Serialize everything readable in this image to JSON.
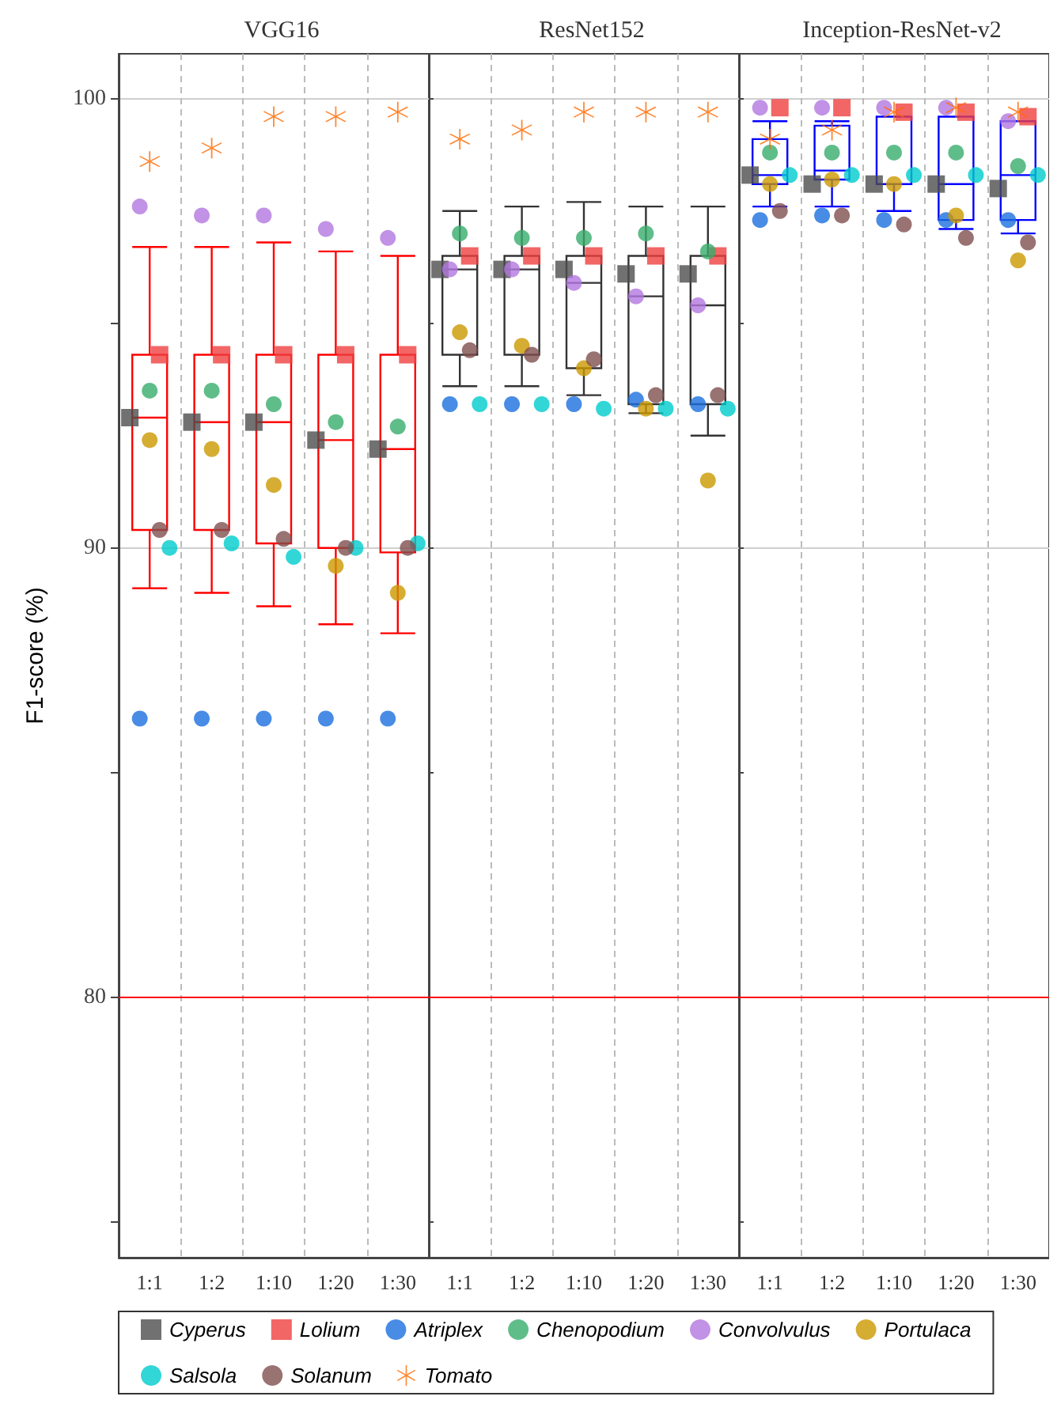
{
  "chart_data": [
    {
      "type": "box",
      "title": "VGG16",
      "ylabel": "F1-score (%)",
      "categories": [
        "1:1",
        "1:2",
        "1:10",
        "1:20",
        "1:30"
      ],
      "ylim": [
        74.2,
        101
      ],
      "yticks": [
        {
          "value": 75,
          "label": null
        },
        80,
        {
          "value": 85,
          "label": null
        },
        90,
        {
          "value": 95,
          "label": null
        },
        100
      ],
      "grid": true,
      "legend": "bottom",
      "ref_lines": [
        {
          "axis": "y",
          "value": 80,
          "color": "#ff0000"
        }
      ],
      "series": [
        {
          "type": "box",
          "color": "#ff0000",
          "boxes": [
            {
              "low": 89.1,
              "q1": 90.4,
              "median": 92.9,
              "q3": 94.3,
              "high": 96.7
            },
            {
              "low": 89.0,
              "q1": 90.4,
              "median": 92.8,
              "q3": 94.3,
              "high": 96.7
            },
            {
              "low": 88.7,
              "q1": 90.1,
              "median": 92.8,
              "q3": 94.3,
              "high": 96.8
            },
            {
              "low": 88.3,
              "q1": 90.0,
              "median": 92.4,
              "q3": 94.3,
              "high": 96.6
            },
            {
              "low": 88.1,
              "q1": 89.9,
              "median": 92.2,
              "q3": 94.3,
              "high": 96.5
            }
          ]
        },
        {
          "type": "scatter",
          "name": "Cyperus",
          "marker": "square",
          "color": "#4d4d4d",
          "x": [
            "1:1",
            "1:2",
            "1:10",
            "1:20",
            "1:30"
          ],
          "values": [
            92.9,
            92.8,
            92.8,
            92.4,
            92.2
          ]
        },
        {
          "type": "scatter",
          "name": "Lolium",
          "marker": "square",
          "color": "#ef4040",
          "x": [
            "1:1",
            "1:2",
            "1:10",
            "1:20",
            "1:30"
          ],
          "values": [
            94.3,
            94.3,
            94.3,
            94.3,
            94.3
          ]
        },
        {
          "type": "scatter",
          "name": "Atriplex",
          "marker": "circle",
          "color": "#1a6fdf",
          "x": [
            "1:1",
            "1:2",
            "1:10",
            "1:20",
            "1:30"
          ],
          "values": [
            86.2,
            86.2,
            86.2,
            86.2,
            86.2
          ]
        },
        {
          "type": "scatter",
          "name": "Chenopodium",
          "marker": "circle",
          "color": "#37ad6b",
          "x": [
            "1:1",
            "1:2",
            "1:10",
            "1:20",
            "1:30"
          ],
          "values": [
            93.5,
            93.5,
            93.2,
            92.8,
            92.7
          ]
        },
        {
          "type": "scatter",
          "name": "Convolvulus",
          "marker": "circle",
          "color": "#b177de",
          "x": [
            "1:1",
            "1:2",
            "1:10",
            "1:20",
            "1:30"
          ],
          "values": [
            97.6,
            97.4,
            97.4,
            97.1,
            96.9
          ]
        },
        {
          "type": "scatter",
          "name": "Portulaca",
          "marker": "circle",
          "color": "#cc9900",
          "x": [
            "1:1",
            "1:2",
            "1:10",
            "1:20",
            "1:30"
          ],
          "values": [
            92.4,
            92.2,
            91.4,
            89.6,
            89.0
          ]
        },
        {
          "type": "scatter",
          "name": "Salsola",
          "marker": "circle",
          "color": "#00cccc",
          "x": [
            "1:1",
            "1:2",
            "1:10",
            "1:20",
            "1:30"
          ],
          "values": [
            90.0,
            90.1,
            89.8,
            90.0,
            90.1
          ]
        },
        {
          "type": "scatter",
          "name": "Solanum",
          "marker": "circle",
          "color": "#7f4f4f",
          "x": [
            "1:1",
            "1:2",
            "1:10",
            "1:20",
            "1:30"
          ],
          "values": [
            90.4,
            90.4,
            90.2,
            90.0,
            90.0
          ]
        },
        {
          "type": "scatter",
          "name": "Tomato",
          "marker": "star",
          "color": "#ff6a00",
          "x": [
            "1:1",
            "1:2",
            "1:10",
            "1:20",
            "1:30"
          ],
          "values": [
            98.6,
            98.9,
            99.6,
            99.6,
            99.7
          ]
        }
      ]
    },
    {
      "type": "box",
      "title": "ResNet152",
      "categories": [
        "1:1",
        "1:2",
        "1:10",
        "1:20",
        "1:30"
      ],
      "ylim": [
        74.2,
        101
      ],
      "yticks": [
        {
          "value": 75,
          "label": null
        },
        80,
        {
          "value": 85,
          "label": null
        },
        90,
        {
          "value": 95,
          "label": null
        },
        100
      ],
      "grid": true,
      "tick_labels": "x",
      "ref_lines": [
        {
          "axis": "y",
          "value": 80,
          "color": "#ff0000"
        }
      ],
      "series": [
        {
          "type": "box",
          "color": "#333333",
          "boxes": [
            {
              "low": 93.6,
              "q1": 94.3,
              "median": 96.2,
              "q3": 96.5,
              "high": 97.5
            },
            {
              "low": 93.6,
              "q1": 94.3,
              "median": 96.2,
              "q3": 96.5,
              "high": 97.6
            },
            {
              "low": 93.4,
              "q1": 94.0,
              "median": 95.9,
              "q3": 96.5,
              "high": 97.7
            },
            {
              "low": 93.0,
              "q1": 93.2,
              "median": 95.6,
              "q3": 96.5,
              "high": 97.6
            },
            {
              "low": 92.5,
              "q1": 93.2,
              "median": 95.4,
              "q3": 96.5,
              "high": 97.6
            }
          ]
        },
        {
          "type": "scatter",
          "marker": "square",
          "color": "#4d4d4d",
          "x": [
            "1:1",
            "1:2",
            "1:10",
            "1:20",
            "1:30"
          ],
          "values": [
            96.2,
            96.2,
            96.2,
            96.1,
            96.1
          ]
        },
        {
          "type": "scatter",
          "marker": "square",
          "color": "#ef4040",
          "x": [
            "1:1",
            "1:2",
            "1:10",
            "1:20",
            "1:30"
          ],
          "values": [
            96.5,
            96.5,
            96.5,
            96.5,
            96.5
          ]
        },
        {
          "type": "scatter",
          "marker": "circle",
          "color": "#1a6fdf",
          "x": [
            "1:1",
            "1:2",
            "1:10",
            "1:20",
            "1:30"
          ],
          "values": [
            93.2,
            93.2,
            93.2,
            93.3,
            93.2
          ]
        },
        {
          "type": "scatter",
          "marker": "circle",
          "color": "#37ad6b",
          "x": [
            "1:1",
            "1:2",
            "1:10",
            "1:20",
            "1:30"
          ],
          "values": [
            97.0,
            96.9,
            96.9,
            97.0,
            96.6
          ]
        },
        {
          "type": "scatter",
          "marker": "circle",
          "color": "#b177de",
          "x": [
            "1:1",
            "1:2",
            "1:10",
            "1:20",
            "1:30"
          ],
          "values": [
            96.2,
            96.2,
            95.9,
            95.6,
            95.4
          ]
        },
        {
          "type": "scatter",
          "marker": "circle",
          "color": "#cc9900",
          "x": [
            "1:1",
            "1:2",
            "1:10",
            "1:20",
            "1:30"
          ],
          "values": [
            94.8,
            94.5,
            94.0,
            93.1,
            91.5
          ]
        },
        {
          "type": "scatter",
          "marker": "circle",
          "color": "#00cccc",
          "x": [
            "1:1",
            "1:2",
            "1:10",
            "1:20",
            "1:30"
          ],
          "values": [
            93.2,
            93.2,
            93.1,
            93.1,
            93.1
          ]
        },
        {
          "type": "scatter",
          "marker": "circle",
          "color": "#7f4f4f",
          "x": [
            "1:1",
            "1:2",
            "1:10",
            "1:20",
            "1:30"
          ],
          "values": [
            94.4,
            94.3,
            94.2,
            93.4,
            93.4
          ]
        },
        {
          "type": "scatter",
          "marker": "star",
          "color": "#ff6a00",
          "x": [
            "1:1",
            "1:2",
            "1:10",
            "1:20",
            "1:30"
          ],
          "values": [
            99.1,
            99.3,
            99.7,
            99.7,
            99.7
          ]
        }
      ]
    },
    {
      "type": "box",
      "title": "Inception-ResNet-v2",
      "categories": [
        "1:1",
        "1:2",
        "1:10",
        "1:20",
        "1:30"
      ],
      "ylim": [
        74.2,
        101
      ],
      "yticks": [
        {
          "value": 75,
          "label": null
        },
        80,
        {
          "value": 85,
          "label": null
        },
        90,
        {
          "value": 95,
          "label": null
        },
        100
      ],
      "grid": true,
      "tick_labels": "x",
      "ref_lines": [
        {
          "axis": "y",
          "value": 80,
          "color": "#ff0000"
        }
      ],
      "series": [
        {
          "type": "box",
          "color": "#0000ff",
          "boxes": [
            {
              "low": 97.6,
              "q1": 98.1,
              "median": 98.3,
              "q3": 99.1,
              "high": 99.5
            },
            {
              "low": 97.6,
              "q1": 98.2,
              "median": 98.4,
              "q3": 99.4,
              "high": 99.5
            },
            {
              "low": 97.5,
              "q1": 98.1,
              "median": 98.1,
              "q3": 99.6,
              "high": 99.6
            },
            {
              "low": 97.1,
              "q1": 97.3,
              "median": 98.1,
              "q3": 99.6,
              "high": 99.6
            },
            {
              "low": 97.0,
              "q1": 97.3,
              "median": 98.3,
              "q3": 99.5,
              "high": 99.5
            }
          ]
        },
        {
          "type": "scatter",
          "marker": "square",
          "color": "#4d4d4d",
          "x": [
            "1:1",
            "1:2",
            "1:10",
            "1:20",
            "1:30"
          ],
          "values": [
            98.3,
            98.1,
            98.1,
            98.1,
            98.0
          ]
        },
        {
          "type": "scatter",
          "marker": "square",
          "color": "#ef4040",
          "x": [
            "1:1",
            "1:2",
            "1:10",
            "1:20",
            "1:30"
          ],
          "values": [
            99.8,
            99.8,
            99.7,
            99.7,
            99.6
          ]
        },
        {
          "type": "scatter",
          "marker": "circle",
          "color": "#1a6fdf",
          "x": [
            "1:1",
            "1:2",
            "1:10",
            "1:20",
            "1:30"
          ],
          "values": [
            97.3,
            97.4,
            97.3,
            97.3,
            97.3
          ]
        },
        {
          "type": "scatter",
          "marker": "circle",
          "color": "#37ad6b",
          "x": [
            "1:1",
            "1:2",
            "1:10",
            "1:20",
            "1:30"
          ],
          "values": [
            98.8,
            98.8,
            98.8,
            98.8,
            98.5
          ]
        },
        {
          "type": "scatter",
          "marker": "circle",
          "color": "#b177de",
          "x": [
            "1:1",
            "1:2",
            "1:10",
            "1:20",
            "1:30"
          ],
          "values": [
            99.8,
            99.8,
            99.8,
            99.8,
            99.5
          ]
        },
        {
          "type": "scatter",
          "marker": "circle",
          "color": "#cc9900",
          "x": [
            "1:1",
            "1:2",
            "1:10",
            "1:20",
            "1:30"
          ],
          "values": [
            98.1,
            98.2,
            98.1,
            97.4,
            96.4
          ]
        },
        {
          "type": "scatter",
          "marker": "circle",
          "color": "#00cccc",
          "x": [
            "1:1",
            "1:2",
            "1:10",
            "1:20",
            "1:30"
          ],
          "values": [
            98.3,
            98.3,
            98.3,
            98.3,
            98.3
          ]
        },
        {
          "type": "scatter",
          "marker": "circle",
          "color": "#7f4f4f",
          "x": [
            "1:1",
            "1:2",
            "1:10",
            "1:20",
            "1:30"
          ],
          "values": [
            97.5,
            97.4,
            97.2,
            96.9,
            96.8
          ]
        },
        {
          "type": "scatter",
          "marker": "star",
          "color": "#ff6a00",
          "x": [
            "1:1",
            "1:2",
            "1:10",
            "1:20",
            "1:30"
          ],
          "values": [
            99.1,
            99.3,
            99.7,
            99.8,
            99.7
          ]
        }
      ]
    }
  ]
}
